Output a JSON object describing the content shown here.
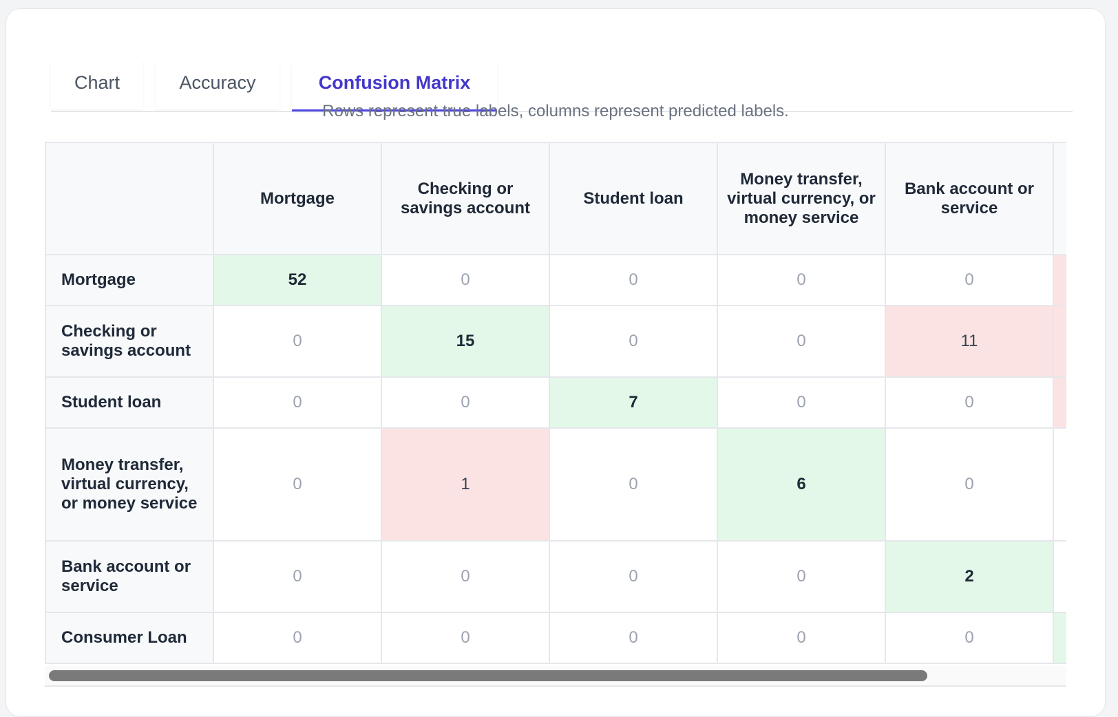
{
  "tabs": [
    "Chart",
    "Accuracy",
    "Confusion Matrix"
  ],
  "caption": "Rows represent true labels, columns represent predicted labels.",
  "table": {
    "columns": [
      "Mortgage",
      "Checking or savings account",
      "Student loan",
      "Money transfer, virtual currency, or money service",
      "Bank account or service"
    ],
    "rows": [
      {
        "label": "Mortgage",
        "values": [
          52,
          0,
          0,
          0,
          0
        ]
      },
      {
        "label": "Checking or savings account",
        "values": [
          0,
          15,
          0,
          0,
          11
        ]
      },
      {
        "label": "Student loan",
        "values": [
          0,
          0,
          7,
          0,
          0
        ]
      },
      {
        "label": "Money transfer, virtual currency, or money service",
        "values": [
          0,
          1,
          0,
          6,
          0
        ]
      },
      {
        "label": "Bank account or service",
        "values": [
          0,
          0,
          0,
          0,
          2
        ]
      },
      {
        "label": "Consumer Loan",
        "values": [
          0,
          0,
          0,
          0,
          0
        ]
      }
    ]
  }
}
